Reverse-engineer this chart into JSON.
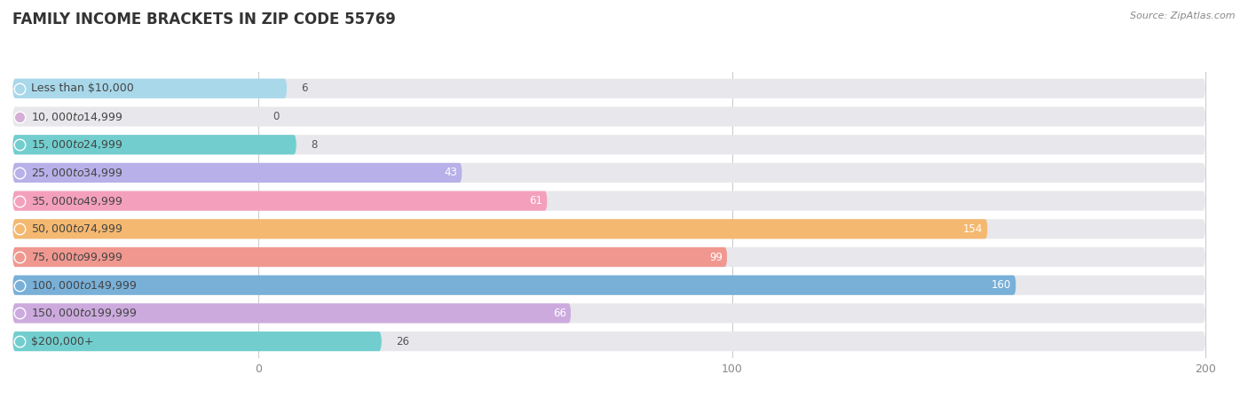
{
  "title": "FAMILY INCOME BRACKETS IN ZIP CODE 55769",
  "source": "Source: ZipAtlas.com",
  "categories": [
    "Less than $10,000",
    "$10,000 to $14,999",
    "$15,000 to $24,999",
    "$25,000 to $34,999",
    "$35,000 to $49,999",
    "$50,000 to $74,999",
    "$75,000 to $99,999",
    "$100,000 to $149,999",
    "$150,000 to $199,999",
    "$200,000+"
  ],
  "values": [
    6,
    0,
    8,
    43,
    61,
    154,
    99,
    160,
    66,
    26
  ],
  "colors": [
    "#a8d8ea",
    "#d4aed4",
    "#72cece",
    "#b8b0e8",
    "#f4a0bc",
    "#f4b870",
    "#f09890",
    "#78b0d8",
    "#ccaade",
    "#72cece"
  ],
  "xlim_data": [
    0,
    200
  ],
  "xticks": [
    0,
    100,
    200
  ],
  "bar_bg_color": "#e8e8ec",
  "title_fontsize": 12,
  "label_fontsize": 9,
  "value_fontsize": 8.5,
  "bar_height": 0.7,
  "source_text": "Source: ZipAtlas.com"
}
